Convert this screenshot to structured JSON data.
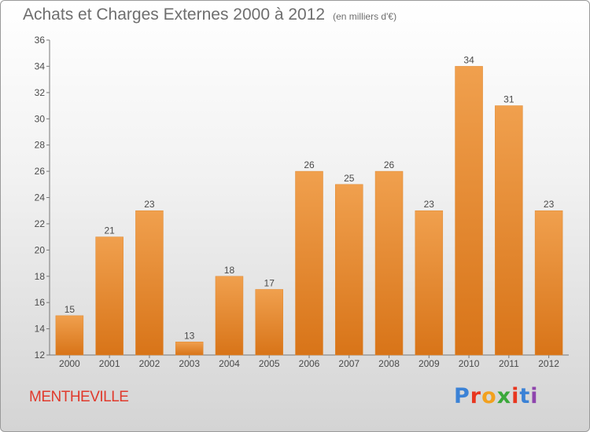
{
  "chart_data": {
    "type": "bar",
    "title": "Achats et Charges Externes 2000 à 2012",
    "subtitle": "(en milliers d'€)",
    "categories": [
      "2000",
      "2001",
      "2002",
      "2003",
      "2004",
      "2005",
      "2006",
      "2007",
      "2008",
      "2009",
      "2010",
      "2011",
      "2012"
    ],
    "values": [
      15,
      21,
      23,
      13,
      18,
      17,
      26,
      25,
      26,
      23,
      34,
      31,
      23
    ],
    "ylim": [
      12,
      36
    ],
    "yticks": [
      12,
      14,
      16,
      18,
      20,
      22,
      24,
      26,
      28,
      30,
      32,
      34,
      36
    ],
    "grid": false,
    "bar_color": "#f0a04e",
    "bar_color_dark": "#d87418"
  },
  "footer": {
    "city": "MENTHEVILLE",
    "brand": "Proxiti",
    "brand_colors": [
      "#3b82d6",
      "#e8361f",
      "#f2a11f",
      "#3ba83b",
      "#e8361f",
      "#3b82d6",
      "#8e44ad"
    ]
  }
}
